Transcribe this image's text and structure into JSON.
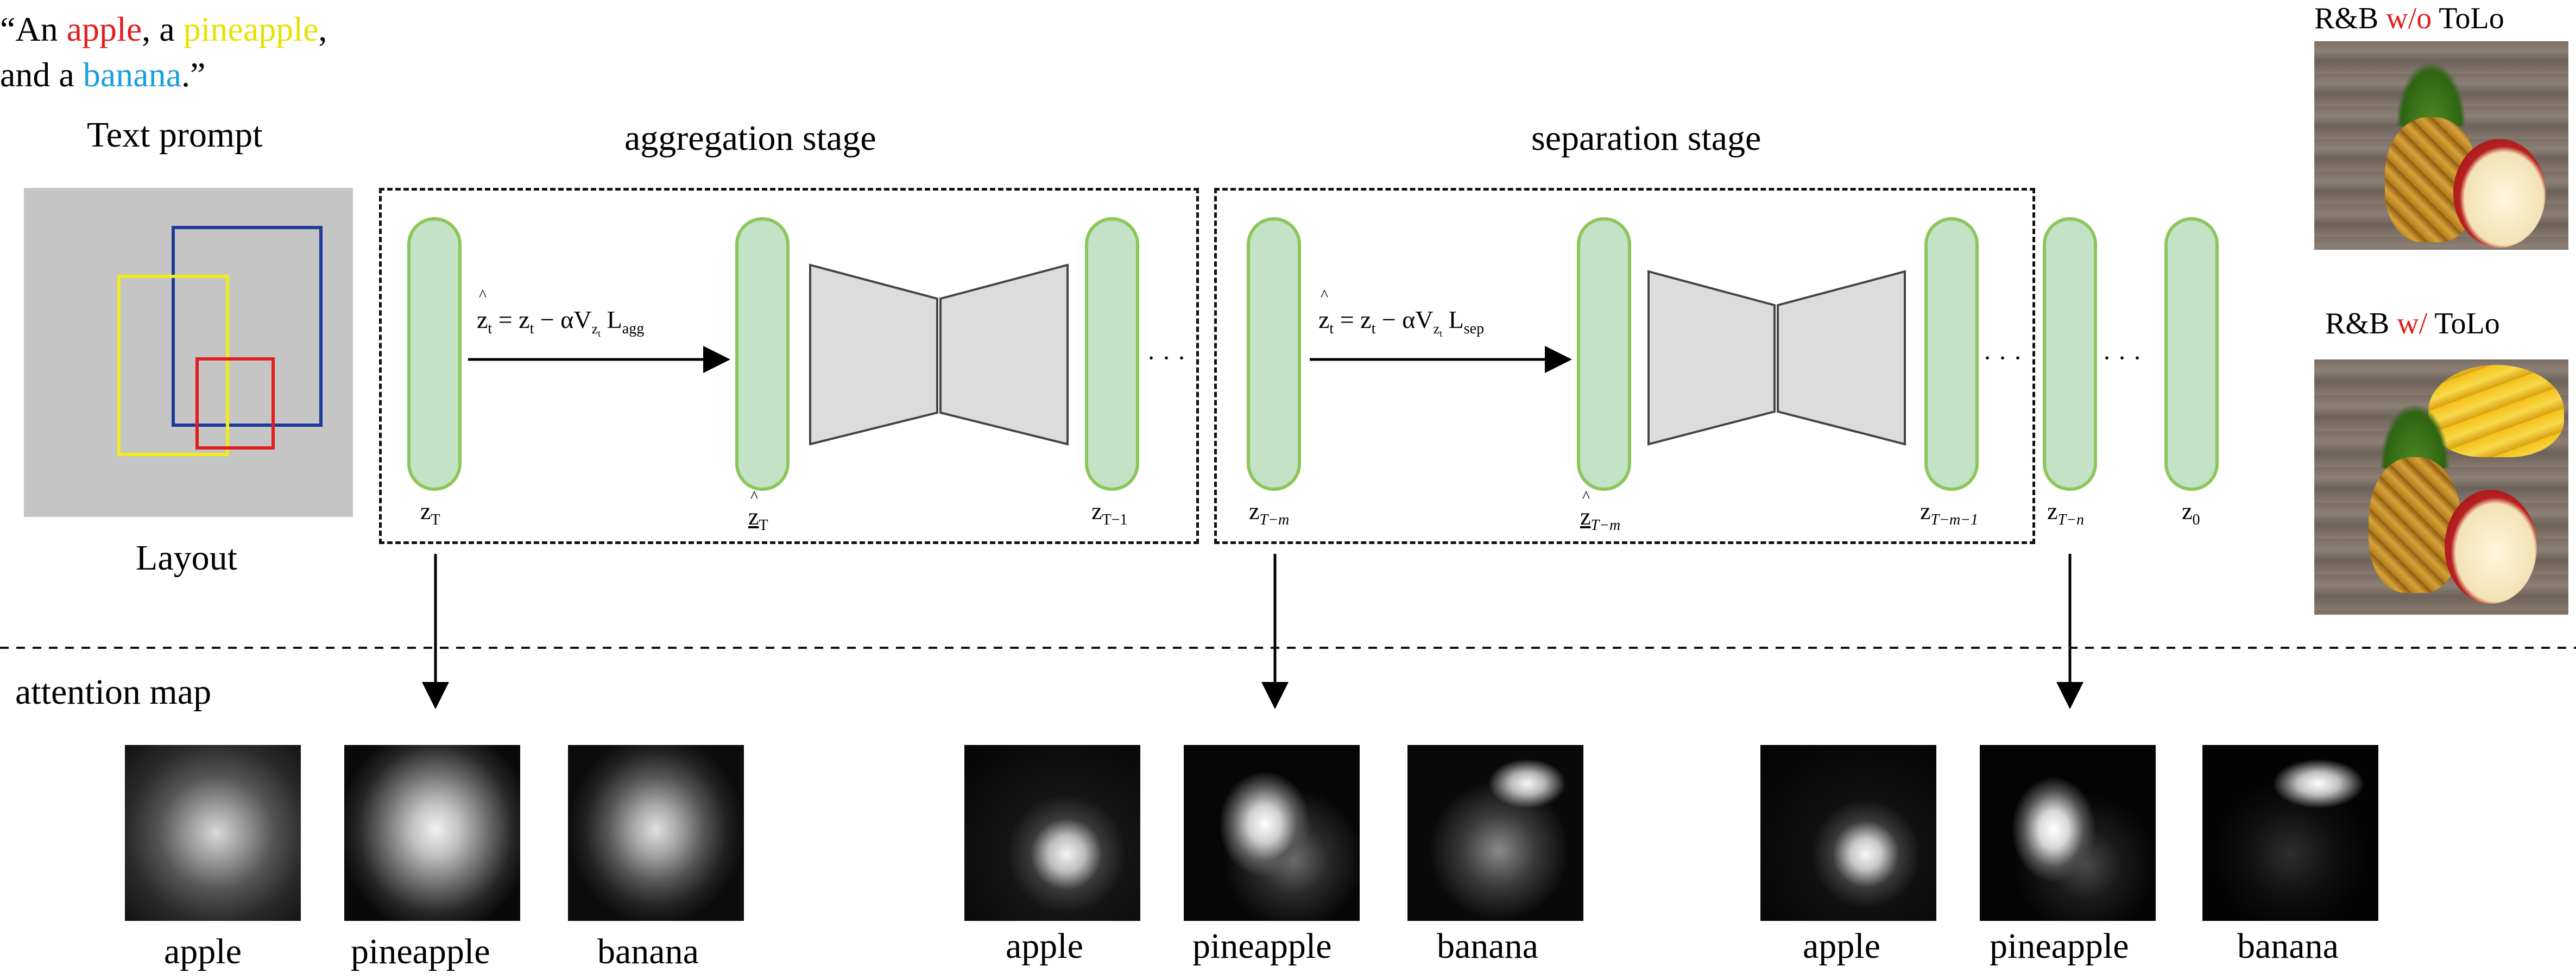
{
  "prompt": {
    "line1": [
      {
        "text": "“An ",
        "color": "#000000"
      },
      {
        "text": "apple",
        "color": "#e11e1e"
      },
      {
        "text": ", a ",
        "color": "#000000"
      },
      {
        "text": "pineapple",
        "color": "#e8e200"
      },
      {
        "text": ",",
        "color": "#000000"
      }
    ],
    "line2": [
      {
        "text": "and a ",
        "color": "#000000"
      },
      {
        "text": "banana",
        "color": "#1aa0dc"
      },
      {
        "text": ".”",
        "color": "#000000"
      }
    ]
  },
  "text_prompt_label": "Text prompt",
  "layout_label": "Layout",
  "layout_box_colors": {
    "blue": "#1e3a9a",
    "yellow": "#f2ea1a",
    "red": "#e01e1e"
  },
  "aggregation_stage": "aggregation stage",
  "separation_stage": "separation stage",
  "eq_agg": {
    "lhs": "z",
    "lhs_sub": "t",
    "mid": " = z",
    "mid_sub": "t",
    "op": " − αV",
    "grad_sub": "z",
    "grad_sub2": "t",
    "loss": " L",
    "loss_sub": "agg"
  },
  "eq_sep": {
    "lhs": "z",
    "lhs_sub": "t",
    "mid": " = z",
    "mid_sub": "t",
    "op": " − αV",
    "grad_sub": "z",
    "grad_sub2": "t",
    "loss": " L",
    "loss_sub": "sep"
  },
  "latents": [
    {
      "main": "z",
      "sub": "T"
    },
    {
      "main": "z",
      "sub": "T"
    },
    {
      "main": "z",
      "sub": "T−1"
    },
    {
      "main": "z",
      "sub": "T−m"
    },
    {
      "main": "z",
      "sub": "T−m"
    },
    {
      "main": "z",
      "sub": "T−m−1"
    },
    {
      "main": "z",
      "sub": "T−n"
    },
    {
      "main": "z",
      "sub": "0"
    }
  ],
  "ellipsis": "· · ·",
  "attention_map_label": "attention map",
  "attention_groups": [
    {
      "labels": [
        "apple",
        "pineapple",
        "banana"
      ]
    },
    {
      "labels": [
        "apple",
        "pineapple",
        "banana"
      ]
    },
    {
      "labels": [
        "apple",
        "pineapple",
        "banana"
      ]
    }
  ],
  "rb_without": {
    "pre": "R&B ",
    "red": "w/o",
    "post": " ToLo"
  },
  "rb_with": {
    "pre": "R&B ",
    "red": "w/",
    "post": " ToLo"
  }
}
